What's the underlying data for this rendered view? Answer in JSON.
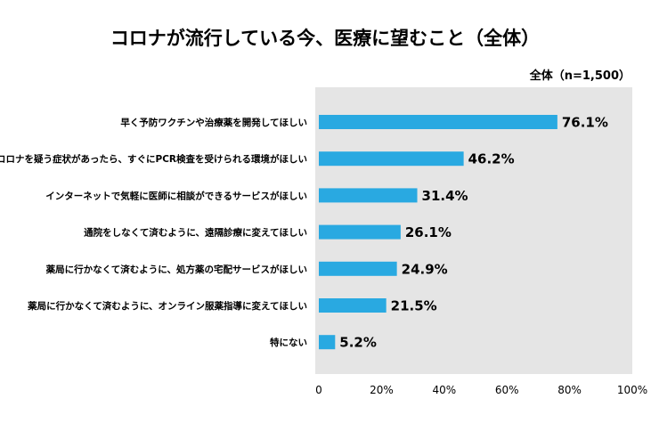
{
  "chart_data": {
    "type": "bar",
    "orientation": "horizontal",
    "title": "コロナが流行している今、医療に望むこと（全体）",
    "subtitle": "全体（n=1,500）",
    "categories": [
      "早く予防ワクチンや治療薬を開発してほしい",
      "コロナを疑う症状があったら、すぐにPCR検査を受けられる環境がほしい",
      "インターネットで気軽に医師に相談ができるサービスがほしい",
      "通院をしなくて済むように、遠隔診療に変えてほしい",
      "薬局に行かなくて済むように、処方薬の宅配サービスがほしい",
      "薬局に行かなくて済むように、オンライン服薬指導に変えてほしい",
      "特にない"
    ],
    "values": [
      76.1,
      46.2,
      31.4,
      26.1,
      24.9,
      21.5,
      5.2
    ],
    "value_labels": [
      "76.1%",
      "46.2%",
      "31.4%",
      "26.1%",
      "24.9%",
      "21.5%",
      "5.2%"
    ],
    "x_ticks": [
      "0",
      "20%",
      "40%",
      "60%",
      "80%",
      "100%"
    ],
    "xlim": [
      0,
      100
    ],
    "grid": false,
    "colors": {
      "bar": "#29a9e1",
      "plot_bg": "#e5e5e5"
    }
  }
}
